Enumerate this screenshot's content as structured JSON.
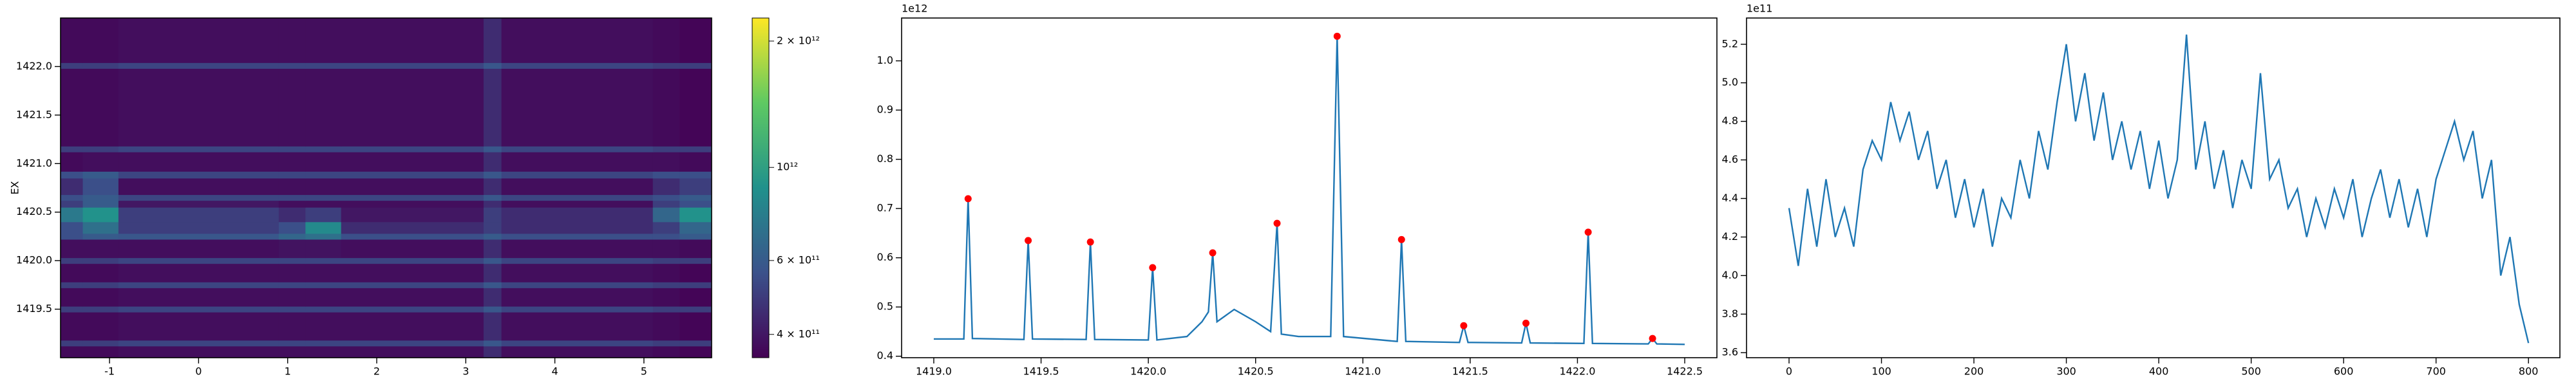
{
  "chart_data": [
    {
      "type": "heatmap",
      "ylabel": "EX",
      "colormap": "viridis",
      "x_edges": [
        -1.55,
        -1.3,
        -0.9,
        0.9,
        1.2,
        1.6,
        3.2,
        3.4,
        5.1,
        5.4,
        5.76
      ],
      "y_edges": [
        1419.0,
        1419.12,
        1419.18,
        1419.47,
        1419.53,
        1419.72,
        1419.78,
        1419.97,
        1420.03,
        1420.22,
        1420.28,
        1420.4,
        1420.55,
        1420.62,
        1420.68,
        1420.85,
        1420.92,
        1421.12,
        1421.18,
        1421.98,
        1422.04,
        1422.5
      ],
      "z": [
        [
          370000000000.0,
          370000000000.0,
          380000000000.0,
          380000000000.0,
          380000000000.0,
          380000000000.0,
          450000000000.0,
          380000000000.0,
          370000000000.0,
          360000000000.0
        ],
        [
          500000000000.0,
          500000000000.0,
          520000000000.0,
          520000000000.0,
          520000000000.0,
          520000000000.0,
          580000000000.0,
          520000000000.0,
          500000000000.0,
          500000000000.0
        ],
        [
          370000000000.0,
          370000000000.0,
          380000000000.0,
          380000000000.0,
          380000000000.0,
          380000000000.0,
          450000000000.0,
          380000000000.0,
          370000000000.0,
          360000000000.0
        ],
        [
          500000000000.0,
          500000000000.0,
          520000000000.0,
          520000000000.0,
          520000000000.0,
          520000000000.0,
          580000000000.0,
          520000000000.0,
          500000000000.0,
          500000000000.0
        ],
        [
          370000000000.0,
          370000000000.0,
          380000000000.0,
          380000000000.0,
          380000000000.0,
          380000000000.0,
          450000000000.0,
          380000000000.0,
          370000000000.0,
          360000000000.0
        ],
        [
          500000000000.0,
          500000000000.0,
          520000000000.0,
          520000000000.0,
          520000000000.0,
          520000000000.0,
          580000000000.0,
          520000000000.0,
          500000000000.0,
          500000000000.0
        ],
        [
          370000000000.0,
          370000000000.0,
          380000000000.0,
          380000000000.0,
          380000000000.0,
          380000000000.0,
          450000000000.0,
          380000000000.0,
          370000000000.0,
          360000000000.0
        ],
        [
          500000000000.0,
          500000000000.0,
          520000000000.0,
          520000000000.0,
          520000000000.0,
          520000000000.0,
          580000000000.0,
          520000000000.0,
          500000000000.0,
          500000000000.0
        ],
        [
          380000000000.0,
          380000000000.0,
          380000000000.0,
          390000000000.0,
          390000000000.0,
          380000000000.0,
          450000000000.0,
          380000000000.0,
          380000000000.0,
          370000000000.0
        ],
        [
          550000000000.0,
          600000000000.0,
          580000000000.0,
          650000000000.0,
          700000000000.0,
          550000000000.0,
          600000000000.0,
          550000000000.0,
          550000000000.0,
          600000000000.0
        ],
        [
          550000000000.0,
          700000000000.0,
          500000000000.0,
          550000000000.0,
          850000000000.0,
          450000000000.0,
          500000000000.0,
          450000000000.0,
          500000000000.0,
          650000000000.0
        ],
        [
          750000000000.0,
          900000000000.0,
          500000000000.0,
          450000000000.0,
          500000000000.0,
          400000000000.0,
          500000000000.0,
          450000000000.0,
          650000000000.0,
          900000000000.0
        ],
        [
          500000000000.0,
          600000000000.0,
          400000000000.0,
          380000000000.0,
          380000000000.0,
          380000000000.0,
          450000000000.0,
          380000000000.0,
          500000000000.0,
          550000000000.0
        ],
        [
          550000000000.0,
          600000000000.0,
          520000000000.0,
          520000000000.0,
          520000000000.0,
          520000000000.0,
          580000000000.0,
          520000000000.0,
          550000000000.0,
          600000000000.0
        ],
        [
          450000000000.0,
          550000000000.0,
          380000000000.0,
          380000000000.0,
          380000000000.0,
          380000000000.0,
          450000000000.0,
          380000000000.0,
          450000000000.0,
          500000000000.0
        ],
        [
          550000000000.0,
          600000000000.0,
          520000000000.0,
          520000000000.0,
          520000000000.0,
          520000000000.0,
          580000000000.0,
          520000000000.0,
          550000000000.0,
          550000000000.0
        ],
        [
          370000000000.0,
          380000000000.0,
          380000000000.0,
          380000000000.0,
          380000000000.0,
          380000000000.0,
          450000000000.0,
          380000000000.0,
          380000000000.0,
          370000000000.0
        ],
        [
          500000000000.0,
          500000000000.0,
          520000000000.0,
          520000000000.0,
          520000000000.0,
          520000000000.0,
          580000000000.0,
          520000000000.0,
          500000000000.0,
          500000000000.0
        ],
        [
          370000000000.0,
          370000000000.0,
          380000000000.0,
          380000000000.0,
          380000000000.0,
          380000000000.0,
          450000000000.0,
          380000000000.0,
          370000000000.0,
          360000000000.0
        ],
        [
          500000000000.0,
          500000000000.0,
          520000000000.0,
          520000000000.0,
          520000000000.0,
          520000000000.0,
          580000000000.0,
          520000000000.0,
          500000000000.0,
          500000000000.0
        ],
        [
          370000000000.0,
          370000000000.0,
          380000000000.0,
          380000000000.0,
          380000000000.0,
          380000000000.0,
          450000000000.0,
          380000000000.0,
          370000000000.0,
          360000000000.0
        ]
      ],
      "xlim": [
        -1.55,
        5.76
      ],
      "ylim": [
        1419.0,
        1422.5
      ],
      "xticks": [
        -1,
        0,
        1,
        2,
        3,
        4,
        5
      ],
      "yticks": [
        1419.5,
        {
          "value": 1420.0,
          "label": "1420.0"
        },
        1420.5,
        {
          "value": 1421.0,
          "label": "1421.0"
        },
        1421.5,
        {
          "value": 1422.0,
          "label": "1422.0"
        }
      ],
      "colorbar": {
        "scale": "log",
        "clim": [
          352000000000.0,
          2270000000000.0
        ],
        "ticks": [
          {
            "value": 400000000000.0,
            "label": "4 × 10¹¹"
          },
          {
            "value": 600000000000.0,
            "label": "6 × 10¹¹"
          },
          {
            "value": 1000000000000.0,
            "label": "10¹²"
          },
          {
            "value": 2000000000000.0,
            "label": "2 × 10¹²"
          }
        ]
      }
    },
    {
      "type": "line",
      "offset_label": "1e12",
      "series": [
        {
          "color": "#1f77b4",
          "x": [
            1419.0,
            1419.14,
            1419.16,
            1419.18,
            1419.42,
            1419.44,
            1419.46,
            1419.71,
            1419.73,
            1419.75,
            1420.0,
            1420.02,
            1420.04,
            1420.18,
            1420.25,
            1420.28,
            1420.3,
            1420.32,
            1420.4,
            1420.5,
            1420.57,
            1420.6,
            1420.62,
            1420.7,
            1420.78,
            1420.85,
            1420.88,
            1420.91,
            1421.16,
            1421.18,
            1421.2,
            1421.45,
            1421.47,
            1421.49,
            1421.74,
            1421.76,
            1421.78,
            1422.03,
            1422.05,
            1422.07,
            1422.33,
            1422.35,
            1422.37,
            1422.5
          ],
          "values": [
            0.435,
            0.435,
            0.72,
            0.436,
            0.434,
            0.635,
            0.435,
            0.434,
            0.632,
            0.434,
            0.433,
            0.58,
            0.433,
            0.44,
            0.47,
            0.49,
            0.61,
            0.47,
            0.495,
            0.47,
            0.45,
            0.67,
            0.445,
            0.44,
            0.44,
            0.44,
            1.05,
            0.44,
            0.43,
            0.637,
            0.43,
            0.428,
            0.462,
            0.428,
            0.427,
            0.467,
            0.427,
            0.426,
            0.652,
            0.426,
            0.425,
            0.436,
            0.425,
            0.424
          ]
        },
        {
          "color": "#ff0000",
          "marker": "o",
          "x": [
            1419.16,
            1419.44,
            1419.73,
            1420.02,
            1420.3,
            1420.6,
            1420.88,
            1421.18,
            1421.47,
            1421.76,
            1422.05,
            1422.35
          ],
          "values": [
            0.72,
            0.635,
            0.632,
            0.58,
            0.61,
            0.67,
            1.05,
            0.637,
            0.462,
            0.467,
            0.652,
            0.436
          ]
        }
      ],
      "xlim": [
        1418.85,
        1422.65
      ],
      "ylim": [
        0.397,
        1.087
      ],
      "xticks": [
        {
          "value": 1419.0,
          "label": "1419.0"
        },
        1419.5,
        {
          "value": 1420.0,
          "label": "1420.0"
        },
        1420.5,
        {
          "value": 1421.0,
          "label": "1421.0"
        },
        1421.5,
        {
          "value": 1422.0,
          "label": "1422.0"
        },
        1422.5
      ],
      "yticks": [
        0.4,
        0.5,
        0.6,
        0.7,
        0.8,
        0.9,
        {
          "value": 1.0,
          "label": "1.0"
        }
      ]
    },
    {
      "type": "line",
      "offset_label": "1e11",
      "series": [
        {
          "color": "#1f77b4",
          "x": [
            0,
            10,
            20,
            30,
            40,
            50,
            60,
            70,
            80,
            90,
            100,
            110,
            120,
            130,
            140,
            150,
            160,
            170,
            180,
            190,
            200,
            210,
            220,
            230,
            240,
            250,
            260,
            270,
            280,
            290,
            300,
            310,
            320,
            330,
            340,
            350,
            360,
            370,
            380,
            390,
            400,
            410,
            420,
            430,
            440,
            450,
            460,
            470,
            480,
            490,
            500,
            510,
            520,
            530,
            540,
            550,
            560,
            570,
            580,
            590,
            600,
            610,
            620,
            630,
            640,
            650,
            660,
            670,
            680,
            690,
            700,
            710,
            720,
            730,
            740,
            750,
            760,
            770,
            780,
            790,
            800
          ],
          "values": [
            4.35,
            4.05,
            4.45,
            4.15,
            4.5,
            4.2,
            4.35,
            4.15,
            4.55,
            4.7,
            4.6,
            4.9,
            4.7,
            4.85,
            4.6,
            4.75,
            4.45,
            4.6,
            4.3,
            4.5,
            4.25,
            4.45,
            4.15,
            4.4,
            4.3,
            4.6,
            4.4,
            4.75,
            4.55,
            4.9,
            5.2,
            4.8,
            5.05,
            4.7,
            4.95,
            4.6,
            4.8,
            4.55,
            4.75,
            4.45,
            4.7,
            4.4,
            4.6,
            5.25,
            4.55,
            4.8,
            4.45,
            4.65,
            4.35,
            4.6,
            4.45,
            5.05,
            4.5,
            4.6,
            4.35,
            4.45,
            4.2,
            4.4,
            4.25,
            4.45,
            4.3,
            4.5,
            4.2,
            4.4,
            4.55,
            4.3,
            4.5,
            4.25,
            4.45,
            4.2,
            4.5,
            4.65,
            4.8,
            4.6,
            4.75,
            4.4,
            4.6,
            4.0,
            4.2,
            3.85,
            3.65
          ]
        }
      ],
      "xlim": [
        -46,
        834
      ],
      "ylim": [
        3.574,
        5.336
      ],
      "xticks": [
        0,
        100,
        200,
        300,
        400,
        500,
        600,
        700,
        800
      ],
      "yticks": [
        3.6,
        3.8,
        {
          "value": 4.0,
          "label": "4.0"
        },
        4.2,
        4.4,
        4.6,
        4.8,
        {
          "value": 5.0,
          "label": "5.0"
        },
        5.2
      ]
    }
  ]
}
